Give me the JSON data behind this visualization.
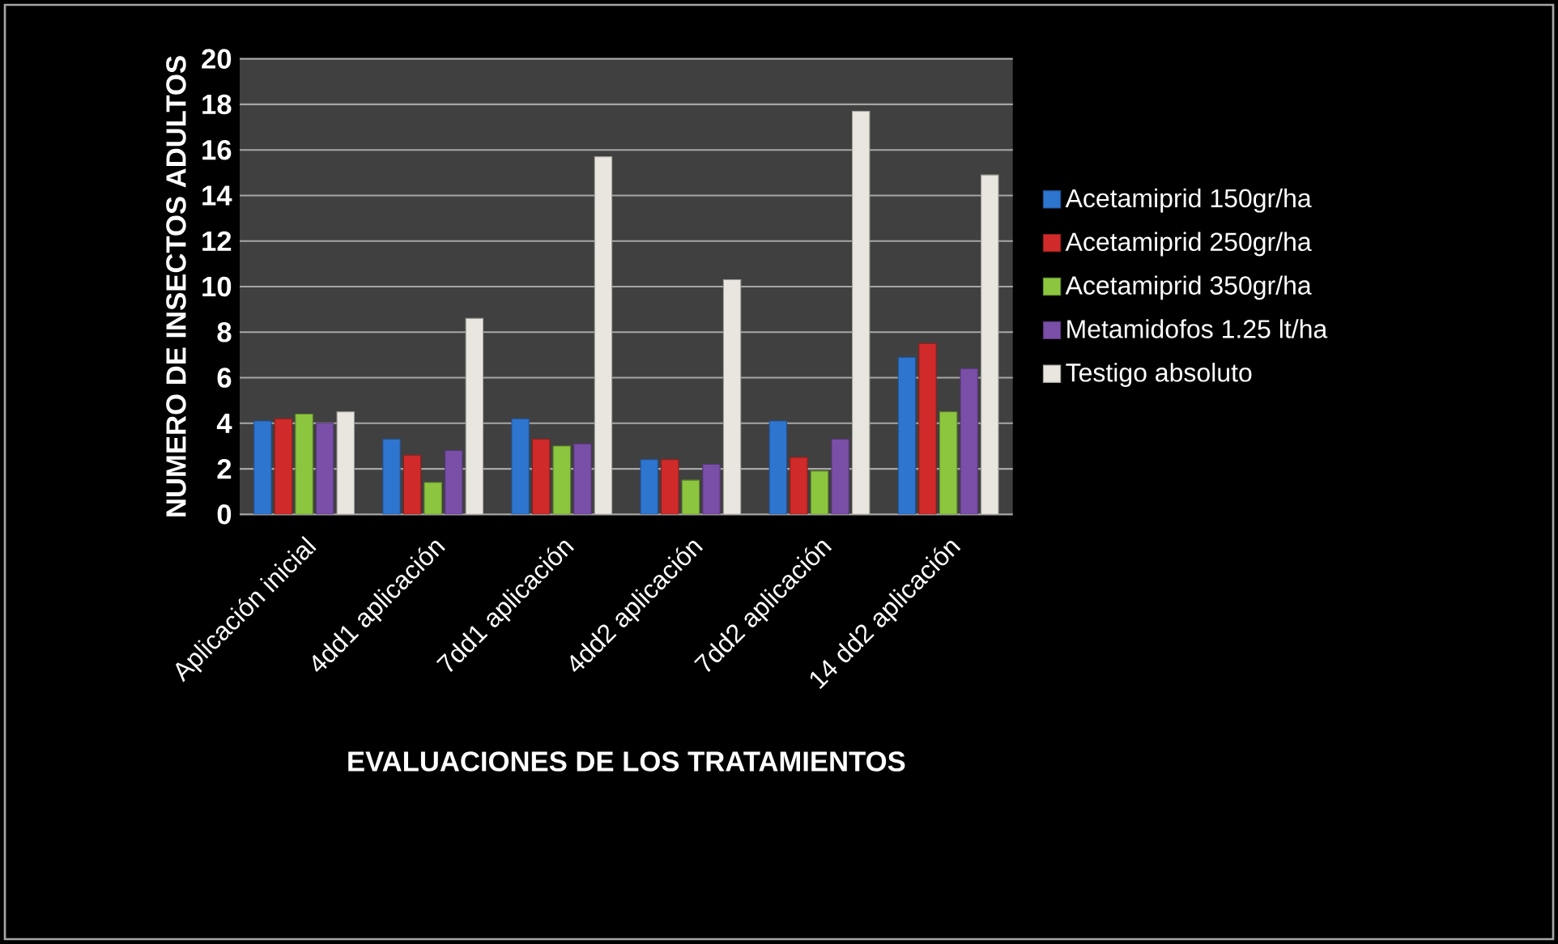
{
  "chart_data": {
    "type": "bar",
    "xlabel": "EVALUACIONES DE LOS TRATAMIENTOS",
    "ylabel": "NUMERO  DE  INSECTOS ADULTOS",
    "categories": [
      "Aplicación inicial",
      "4dd1 aplicación",
      "7dd1 aplicación",
      "4dd2 aplicación",
      "7dd2 aplicación",
      "14 dd2 aplicación"
    ],
    "series": [
      {
        "name": "Acetamiprid 150gr/ha",
        "color": "#2e75d0",
        "values": [
          4.1,
          3.3,
          4.2,
          2.4,
          4.1,
          6.9
        ]
      },
      {
        "name": "Acetamiprid 250gr/ha",
        "color": "#d02a2a",
        "values": [
          4.2,
          2.6,
          3.3,
          2.4,
          2.5,
          7.5
        ]
      },
      {
        "name": "Acetamiprid 350gr/ha",
        "color": "#8cc63e",
        "values": [
          4.4,
          1.4,
          3.0,
          1.5,
          1.9,
          4.5
        ]
      },
      {
        "name": "Metamidofos 1.25 lt/ha",
        "color": "#7a4fa8",
        "values": [
          4.0,
          2.8,
          3.1,
          2.2,
          3.3,
          6.4
        ]
      },
      {
        "name": "Testigo absoluto",
        "color": "#e8e6df",
        "values": [
          4.5,
          8.6,
          15.7,
          10.3,
          17.7,
          14.9
        ]
      }
    ],
    "ylim": [
      0,
      20
    ],
    "yticks": [
      0,
      2,
      4,
      6,
      8,
      10,
      12,
      14,
      16,
      18,
      20
    ],
    "grid": "y",
    "legend": "right"
  }
}
